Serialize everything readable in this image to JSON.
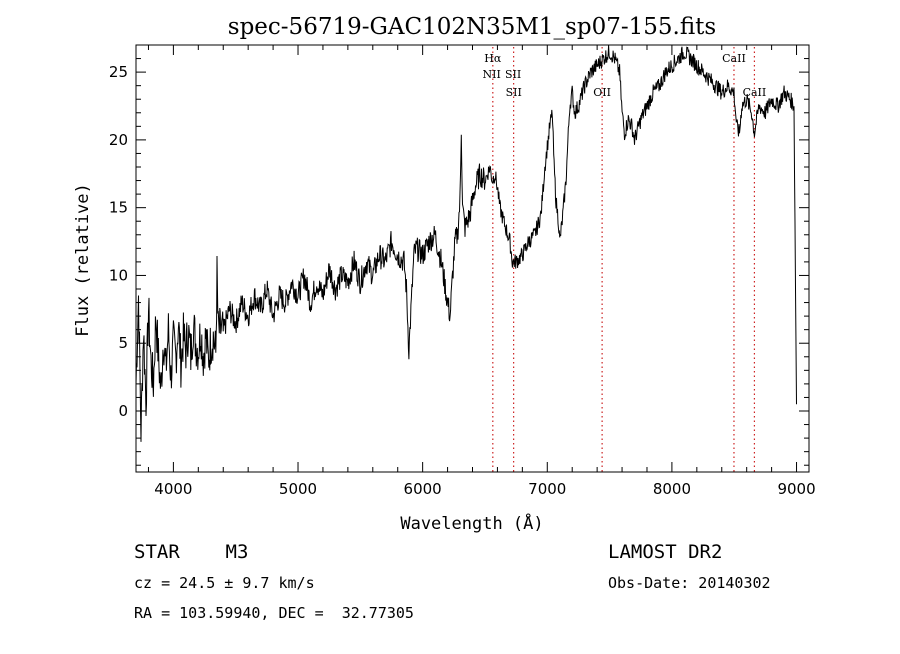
{
  "chart_data": {
    "type": "line",
    "title": "spec-56719-GAC102N35M1_sp07-155.fits",
    "xlabel": "Wavelength (Å)",
    "ylabel": "Flux (relative)",
    "xlim": [
      3700,
      9100
    ],
    "ylim": [
      -4.5,
      27
    ],
    "xticks": [
      4000,
      5000,
      6000,
      7000,
      8000,
      9000
    ],
    "yticks": [
      0,
      5,
      10,
      15,
      20,
      25
    ],
    "grid": false,
    "line_color": "#000000",
    "marker_color": "#cc2222",
    "series": [
      {
        "x": [
          3700,
          3720,
          3740,
          3760,
          3780,
          3800,
          3820,
          3840,
          3860,
          3880,
          3900,
          3920,
          3940,
          3960,
          3980,
          4000,
          4020,
          4040,
          4060,
          4080,
          4100,
          4120,
          4140,
          4160,
          4180,
          4200,
          4220,
          4240,
          4260,
          4280,
          4300,
          4320,
          4340,
          4350,
          4360,
          4380,
          4400,
          4450,
          4500,
          4550,
          4600,
          4650,
          4700,
          4750,
          4800,
          4850,
          4900,
          4950,
          5000,
          5050,
          5100,
          5150,
          5200,
          5250,
          5300,
          5350,
          5400,
          5450,
          5500,
          5550,
          5600,
          5650,
          5700,
          5750,
          5800,
          5850,
          5870,
          5890,
          5910,
          5930,
          5950,
          6000,
          6050,
          6100,
          6150,
          6200,
          6220,
          6240,
          6260,
          6280,
          6300,
          6310,
          6320,
          6340,
          6380,
          6420,
          6460,
          6500,
          6540,
          6560,
          6580,
          6600,
          6620,
          6650,
          6700,
          6720,
          6750,
          6800,
          6850,
          6900,
          6950,
          6980,
          7000,
          7020,
          7040,
          7055,
          7070,
          7090,
          7100,
          7120,
          7150,
          7180,
          7200,
          7220,
          7250,
          7300,
          7350,
          7400,
          7450,
          7500,
          7540,
          7560,
          7580,
          7600,
          7620,
          7650,
          7680,
          7700,
          7750,
          7800,
          7850,
          7900,
          7950,
          8000,
          8050,
          8100,
          8150,
          8200,
          8250,
          8300,
          8350,
          8400,
          8450,
          8498,
          8520,
          8542,
          8560,
          8600,
          8640,
          8662,
          8680,
          8700,
          8750,
          8800,
          8850,
          8900,
          8950,
          8980,
          9000
        ],
        "y": [
          2.0,
          8.5,
          -1.5,
          6.0,
          0.8,
          7.5,
          3.5,
          2.0,
          7.0,
          4.0,
          1.5,
          5.5,
          3.0,
          6.0,
          2.5,
          5.0,
          4.0,
          6.5,
          3.5,
          5.5,
          4.5,
          6.0,
          4.0,
          6.5,
          5.0,
          4.5,
          6.0,
          4.0,
          5.5,
          3.8,
          5.0,
          5.5,
          4.2,
          10.0,
          5.8,
          6.0,
          5.8,
          7.5,
          6.5,
          8.0,
          7.0,
          8.5,
          7.5,
          9.0,
          7.0,
          8.5,
          8.0,
          9.5,
          8.5,
          10.0,
          8.0,
          9.5,
          8.5,
          10.5,
          9.0,
          10.0,
          9.5,
          11.0,
          9.5,
          11.0,
          10.0,
          11.5,
          11.0,
          12.5,
          11.5,
          11.0,
          9.0,
          4.5,
          8.0,
          11.5,
          12.0,
          11.5,
          12.5,
          13.0,
          11.0,
          8.0,
          7.0,
          10.0,
          12.5,
          13.0,
          15.5,
          21.0,
          15.0,
          13.5,
          14.5,
          16.5,
          17.5,
          17.0,
          18.0,
          17.0,
          17.5,
          16.5,
          15.0,
          14.0,
          12.5,
          11.0,
          11.0,
          11.5,
          12.5,
          13.0,
          14.5,
          18.0,
          19.5,
          21.0,
          22.0,
          18.0,
          15.5,
          14.0,
          12.5,
          14.0,
          17.0,
          22.5,
          23.5,
          22.0,
          22.5,
          24.0,
          25.0,
          25.5,
          26.0,
          26.5,
          26.0,
          25.5,
          25.0,
          22.0,
          20.5,
          21.5,
          21.0,
          20.0,
          21.5,
          22.5,
          23.5,
          24.0,
          25.0,
          25.5,
          26.0,
          26.5,
          26.0,
          25.5,
          25.0,
          24.5,
          24.0,
          23.5,
          24.0,
          23.5,
          21.0,
          20.5,
          22.5,
          23.0,
          22.0,
          20.5,
          21.5,
          22.5,
          22.0,
          23.0,
          22.5,
          23.5,
          23.0,
          22.5,
          0.5
        ]
      }
    ],
    "line_markers": [
      {
        "label": "Hα",
        "x": 6563,
        "label_row": 1
      },
      {
        "label": "NII",
        "x": 6563,
        "label_row": 2,
        "align": "end"
      },
      {
        "label": "SII",
        "x": 6725,
        "label_row": 2,
        "align": "start"
      },
      {
        "label": "SII",
        "x": 6731,
        "label_row": 3
      },
      {
        "label": "OII",
        "x": 7440,
        "label_row": 3
      },
      {
        "label": "CaII",
        "x": 8498,
        "label_row": 1
      },
      {
        "label": "CaII",
        "x": 8662,
        "label_row": 3
      }
    ],
    "marker_lines_x": [
      6563,
      6730,
      7440,
      8498,
      8662
    ]
  },
  "info": {
    "object": "STAR    M3",
    "survey": "LAMOST DR2",
    "redshift": "cz = 24.5 ± 9.7 km/s",
    "obs_date": "Obs-Date: 20140302",
    "coords": "RA = 103.59940, DEC =  32.77305"
  }
}
